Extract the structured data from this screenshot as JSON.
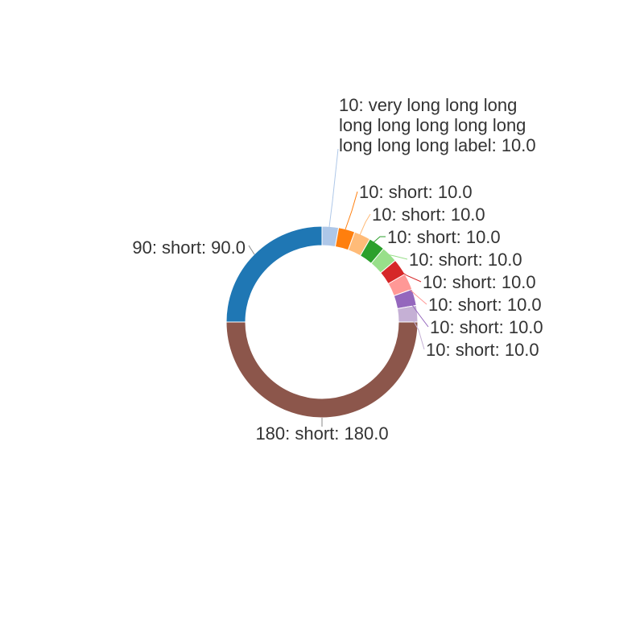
{
  "chart_data": {
    "type": "pie",
    "variant": "donut",
    "start_angle_deg": 270,
    "direction": "counterclockwise",
    "colors": {
      "stroke": "#ffffff",
      "label_text": "#333333"
    },
    "slices": [
      {
        "id": "180",
        "name": "short",
        "value": 180.0,
        "color": "#8c564b",
        "label_lines": [
          "180: short: 180.0"
        ]
      },
      {
        "id": "90",
        "name": "short",
        "value": 90.0,
        "color": "#1f77b4",
        "label_lines": [
          "90: short: 90.0"
        ]
      },
      {
        "id": "10",
        "name": "very long long long long long long long long long long long label",
        "value": 10.0,
        "color": "#aec7e8",
        "label_lines": [
          "10: very long long long",
          "long long long long long",
          "long long long label: 10.0"
        ]
      },
      {
        "id": "10",
        "name": "short",
        "value": 10.0,
        "color": "#ff7f0e",
        "label_lines": [
          "10: short: 10.0"
        ]
      },
      {
        "id": "10",
        "name": "short",
        "value": 10.0,
        "color": "#ffbb78",
        "label_lines": [
          "10: short: 10.0"
        ]
      },
      {
        "id": "10",
        "name": "short",
        "value": 10.0,
        "color": "#2ca02c",
        "label_lines": [
          "10: short: 10.0"
        ]
      },
      {
        "id": "10",
        "name": "short",
        "value": 10.0,
        "color": "#98df8a",
        "label_lines": [
          "10: short: 10.0"
        ]
      },
      {
        "id": "10",
        "name": "short",
        "value": 10.0,
        "color": "#d62728",
        "label_lines": [
          "10: short: 10.0"
        ]
      },
      {
        "id": "10",
        "name": "short",
        "value": 10.0,
        "color": "#ff9896",
        "label_lines": [
          "10: short: 10.0"
        ]
      },
      {
        "id": "10",
        "name": "short",
        "value": 10.0,
        "color": "#9467bd",
        "label_lines": [
          "10: short: 10.0"
        ]
      },
      {
        "id": "10",
        "name": "short",
        "value": 10.0,
        "color": "#c5b0d5",
        "label_lines": [
          "10: short: 10.0"
        ]
      }
    ]
  }
}
